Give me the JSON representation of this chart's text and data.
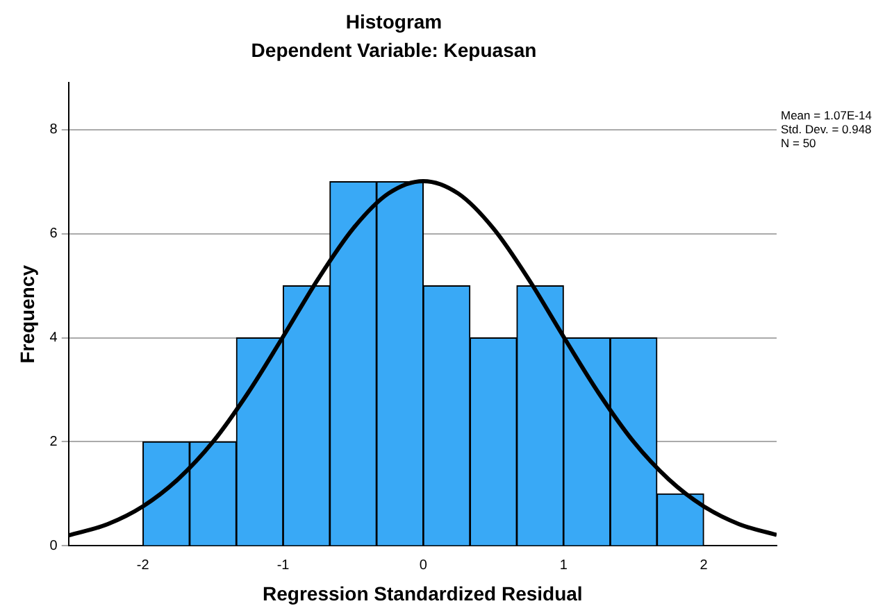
{
  "chart_data": {
    "type": "histogram",
    "title": "Histogram",
    "subtitle": "Dependent Variable: Kepuasan",
    "xlabel": "Regression Standardized Residual",
    "ylabel": "Frequency",
    "bins": [
      -2,
      -1.667,
      -1.333,
      -1,
      -0.667,
      -0.333,
      0,
      0.333,
      0.667,
      1,
      1.333,
      1.667,
      2
    ],
    "values": [
      2,
      2,
      4,
      5,
      7,
      7,
      5,
      4,
      5,
      4,
      4,
      1
    ],
    "color": "#39a9f6",
    "series": [
      {
        "type": "line",
        "color": "#000000",
        "x": [
          -2.53,
          -2.25,
          -2,
          -1.75,
          -1.5,
          -1.25,
          -1,
          -0.75,
          -0.5,
          -0.25,
          0,
          0.25,
          0.5,
          0.75,
          1,
          1.25,
          1.5,
          1.75,
          2,
          2.25,
          2.52
        ],
        "values": [
          0.2,
          0.42,
          0.76,
          1.28,
          2.0,
          2.94,
          4.02,
          5.13,
          6.1,
          6.77,
          7.01,
          6.77,
          6.1,
          5.13,
          4.02,
          2.94,
          2.0,
          1.28,
          0.76,
          0.42,
          0.21
        ]
      }
    ],
    "xlim": [
      -2.53,
      2.52
    ],
    "xticks": [
      -2,
      -1,
      0,
      1,
      2
    ],
    "ylim": [
      0,
      8.9
    ],
    "yticks": [
      0,
      2,
      4,
      6,
      8
    ],
    "grid": "y",
    "legend": false,
    "marker": "none",
    "line_style": "solid",
    "annotations": [
      "Mean = 1.07E-14",
      "Std. Dev. = 0.948",
      "N = 50"
    ]
  }
}
